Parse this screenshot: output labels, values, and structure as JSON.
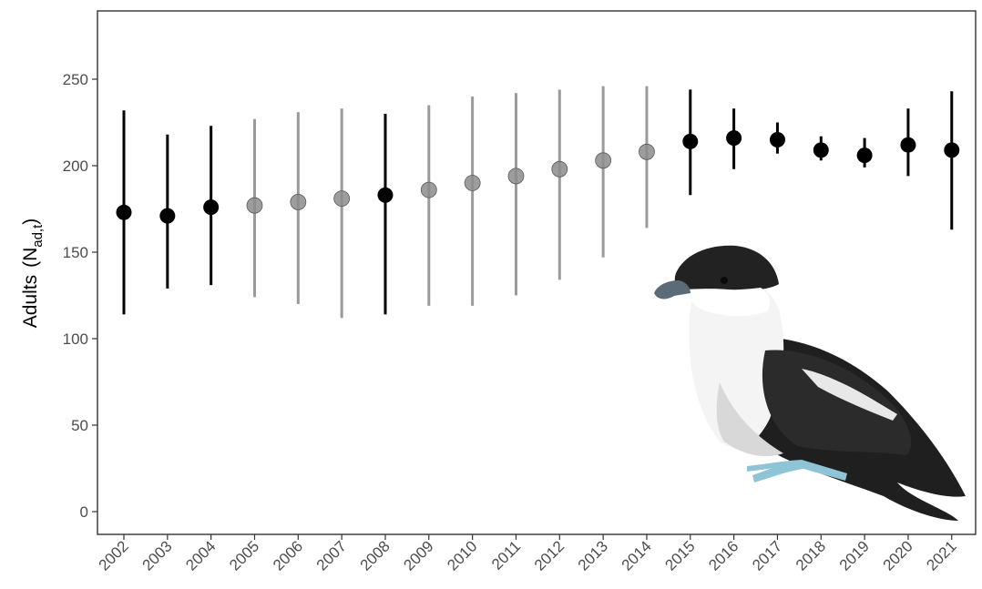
{
  "chart_data": {
    "type": "scatter",
    "ylabel": "Adults",
    "ylabel_symbol": {
      "base": "N",
      "subscript": "ad,t"
    },
    "ylim": [
      -12,
      288
    ],
    "yticks": [
      0,
      50,
      100,
      150,
      200,
      250
    ],
    "grid": false,
    "legend": "none",
    "x": [
      "2002",
      "2003",
      "2004",
      "2005",
      "2006",
      "2007",
      "2008",
      "2009",
      "2010",
      "2011",
      "2012",
      "2013",
      "2014",
      "2015",
      "2016",
      "2017",
      "2018",
      "2019",
      "2020",
      "2021"
    ],
    "series": [
      {
        "estimate": [
          173,
          171,
          176,
          177,
          179,
          181,
          183,
          186,
          190,
          194,
          198,
          203,
          208,
          214,
          216,
          215,
          209,
          206,
          212,
          209
        ],
        "lower": [
          114,
          129,
          131,
          124,
          120,
          112,
          114,
          119,
          119,
          125,
          134,
          147,
          164,
          183,
          198,
          207,
          203,
          199,
          194,
          163
        ],
        "upper": [
          232,
          218,
          223,
          227,
          231,
          233,
          230,
          235,
          240,
          242,
          244,
          246,
          246,
          244,
          233,
          225,
          217,
          216,
          233,
          243
        ],
        "observed": [
          true,
          true,
          true,
          false,
          false,
          false,
          true,
          false,
          false,
          false,
          false,
          false,
          false,
          true,
          true,
          true,
          true,
          true,
          true,
          true
        ]
      }
    ],
    "colors": {
      "observed": "#000000",
      "unobserved_bar": "#9a9a9a",
      "unobserved_point": "#8c8c8c"
    },
    "illustration": "storm-petrel-bird"
  }
}
